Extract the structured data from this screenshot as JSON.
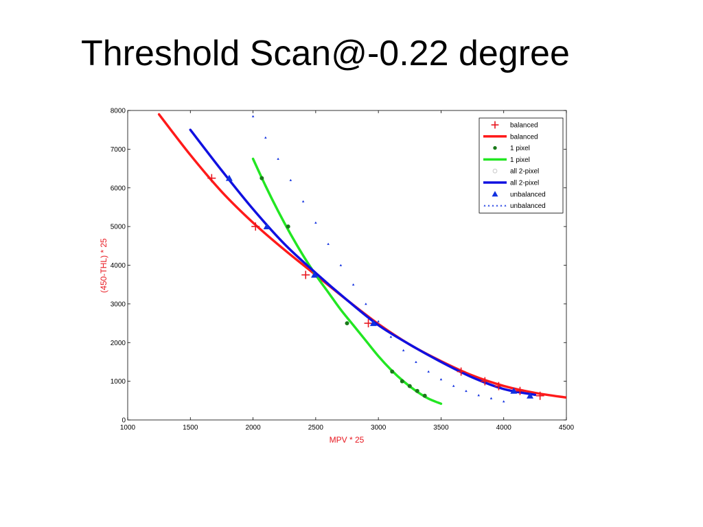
{
  "slide": {
    "title": "Threshold Scan@-0.22 degree"
  },
  "chart_data": {
    "type": "line",
    "title": "",
    "xlabel": "MPV * 25",
    "ylabel": "(450-THL) * 25",
    "xlim": [
      1000,
      4500
    ],
    "ylim": [
      0,
      8000
    ],
    "xticks": [
      1000,
      1500,
      2000,
      2500,
      3000,
      3500,
      4000,
      4500
    ],
    "yticks": [
      0,
      1000,
      2000,
      3000,
      4000,
      5000,
      6000,
      7000,
      8000
    ],
    "grid": false,
    "legend_position": "top-right",
    "axis_label_color": "#e8161e",
    "series": [
      {
        "name": "balanced",
        "kind": "marker",
        "marker": "plus",
        "color": "#e8161e",
        "x": [
          1670,
          2020,
          2420,
          2920,
          3660,
          3850,
          3960,
          4130,
          4290
        ],
        "y": [
          6250,
          5000,
          3750,
          2500,
          1250,
          1000,
          875,
          750,
          625
        ]
      },
      {
        "name": "balanced",
        "kind": "line",
        "color": "#ff1a1a",
        "x": [
          1250,
          1500,
          1750,
          2000,
          2250,
          2500,
          2750,
          3000,
          3250,
          3500,
          3750,
          4000,
          4250,
          4500
        ],
        "y": [
          7900,
          6850,
          5900,
          5100,
          4400,
          3750,
          3100,
          2480,
          1950,
          1520,
          1150,
          880,
          700,
          580
        ]
      },
      {
        "name": "1 pixel",
        "kind": "marker",
        "marker": "dot",
        "color": "#1a7a1a",
        "x": [
          2070,
          2280,
          2750,
          3110,
          3190,
          3250,
          3310,
          3370
        ],
        "y": [
          6250,
          5000,
          2500,
          1250,
          1000,
          875,
          750,
          625
        ]
      },
      {
        "name": "1 pixel",
        "kind": "line",
        "color": "#22e622",
        "x": [
          2000,
          2100,
          2200,
          2300,
          2400,
          2500,
          2600,
          2700,
          2800,
          2900,
          3000,
          3100,
          3200,
          3300,
          3400,
          3500
        ],
        "y": [
          6750,
          6050,
          5400,
          4800,
          4250,
          3750,
          3300,
          2850,
          2450,
          2050,
          1650,
          1300,
          1000,
          750,
          550,
          420
        ]
      },
      {
        "name": "all 2-pixel",
        "kind": "marker",
        "marker": "circle",
        "color": "#bbbbbb",
        "x": [],
        "y": []
      },
      {
        "name": "all 2-pixel",
        "kind": "line",
        "color": "#1010e0",
        "x": [
          1500,
          1750,
          2000,
          2250,
          2500,
          2750,
          3000,
          3250,
          3500,
          3750,
          4000,
          4250
        ],
        "y": [
          7500,
          6450,
          5450,
          4550,
          3800,
          3100,
          2450,
          1950,
          1500,
          1100,
          800,
          650
        ]
      },
      {
        "name": "unbalanced",
        "kind": "marker",
        "marker": "triangle",
        "color": "#1030e0",
        "x": [
          1810,
          2110,
          2490,
          2960,
          4080,
          4210
        ],
        "y": [
          6250,
          5000,
          3750,
          2500,
          750,
          625
        ]
      },
      {
        "name": "unbalanced",
        "kind": "dotted",
        "color": "#1030e0",
        "x": [
          2000,
          2100,
          2200,
          2300,
          2400,
          2500,
          2600,
          2700,
          2800,
          2900,
          3000,
          3100,
          3200,
          3300,
          3400,
          3500,
          3600,
          3700,
          3800,
          3900,
          4000
        ],
        "y": [
          7850,
          7300,
          6750,
          6200,
          5650,
          5100,
          4550,
          4000,
          3500,
          3000,
          2550,
          2150,
          1800,
          1500,
          1250,
          1050,
          880,
          750,
          640,
          560,
          480
        ]
      }
    ]
  }
}
